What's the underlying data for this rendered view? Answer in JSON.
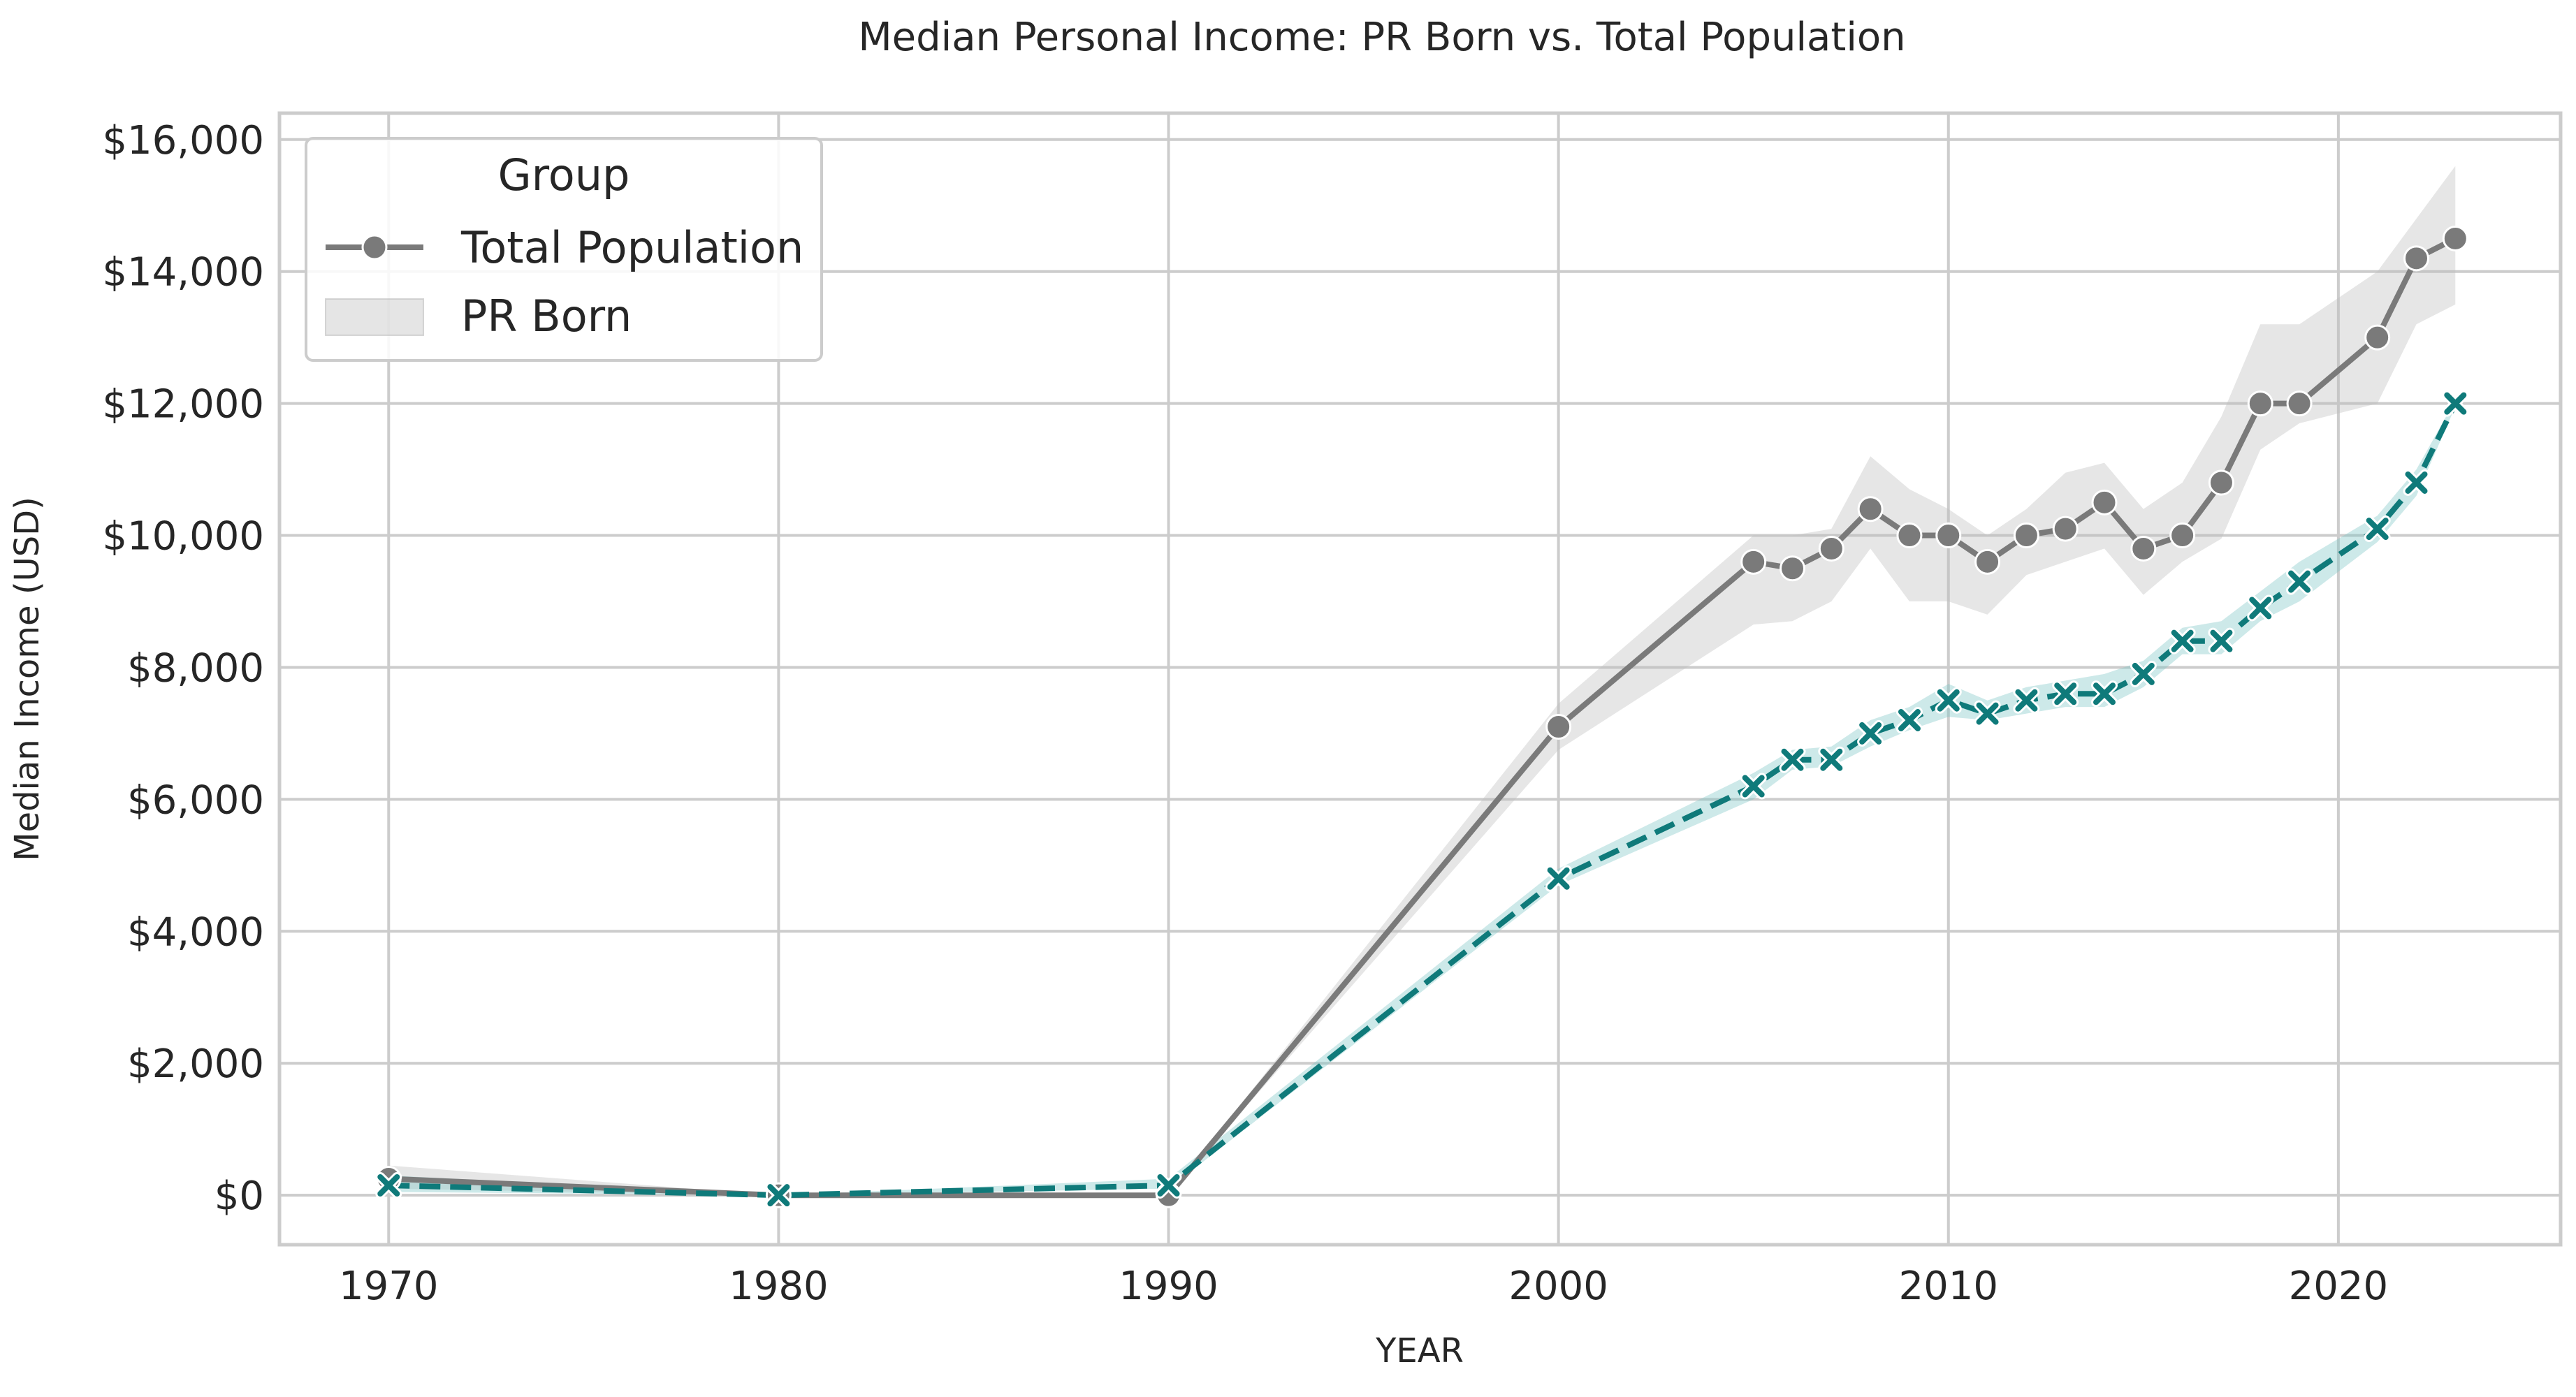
{
  "chart_data": {
    "type": "line",
    "title": "Median Personal Income: PR Born vs. Total Population",
    "xlabel": "YEAR",
    "ylabel": "Median Income (USD)",
    "xlim": [
      1967.2,
      2025.7
    ],
    "ylim": [
      -750,
      16400
    ],
    "x_ticks": [
      1970,
      1980,
      1990,
      2000,
      2010,
      2020
    ],
    "x_tick_labels": [
      "1970",
      "1980",
      "1990",
      "2000",
      "2010",
      "2020"
    ],
    "y_ticks": [
      0,
      2000,
      4000,
      6000,
      8000,
      10000,
      12000,
      14000,
      16000
    ],
    "y_tick_labels": [
      "$0",
      "$2,000",
      "$4,000",
      "$6,000",
      "$8,000",
      "$10,000",
      "$12,000",
      "$14,000",
      "$16,000"
    ],
    "grid": true,
    "legend": {
      "title": "Group",
      "position": "top-left",
      "entries": [
        "Total Population",
        "PR Born"
      ]
    },
    "series": [
      {
        "name": "Total Population",
        "color": "#7a7a7a",
        "band_color": "#bdbdbd",
        "line_style": "solid",
        "marker": "circle",
        "x": [
          1970,
          1980,
          1990,
          2000,
          2005,
          2006,
          2007,
          2008,
          2009,
          2010,
          2011,
          2012,
          2013,
          2014,
          2015,
          2016,
          2017,
          2018,
          2019,
          2021,
          2022,
          2023
        ],
        "values": [
          250,
          0,
          0,
          7100,
          9600,
          9500,
          9800,
          10400,
          10000,
          10000,
          9600,
          10000,
          10100,
          10500,
          9800,
          10000,
          10800,
          12000,
          12000,
          13000,
          14200,
          14500
        ],
        "lower": [
          100,
          0,
          0,
          6750,
          8650,
          8700,
          9000,
          9800,
          9000,
          9000,
          8800,
          9400,
          9600,
          9800,
          9100,
          9600,
          9950,
          11300,
          11700,
          12000,
          13200,
          13500
        ],
        "upper": [
          450,
          0,
          0,
          7450,
          10000,
          10000,
          10100,
          11200,
          10700,
          10400,
          10000,
          10400,
          10950,
          11100,
          10400,
          10800,
          11800,
          13200,
          13200,
          14000,
          14800,
          15600
        ]
      },
      {
        "name": "PR Born",
        "color": "#0f7a7a",
        "band_color": "#7cc6c6",
        "line_style": "dashed",
        "marker": "x",
        "x": [
          1970,
          1980,
          1990,
          2000,
          2005,
          2006,
          2007,
          2008,
          2009,
          2010,
          2011,
          2012,
          2013,
          2014,
          2015,
          2016,
          2017,
          2018,
          2019,
          2021,
          2022,
          2023
        ],
        "values": [
          150,
          0,
          150,
          4800,
          6200,
          6600,
          6600,
          7000,
          7200,
          7500,
          7300,
          7500,
          7600,
          7600,
          7900,
          8400,
          8400,
          8900,
          9300,
          10100,
          10800,
          12000
        ],
        "lower": [
          50,
          0,
          100,
          4700,
          6000,
          6450,
          6500,
          6800,
          7050,
          7250,
          7200,
          7300,
          7400,
          7400,
          7700,
          8200,
          8200,
          8700,
          9000,
          9900,
          10600,
          11950
        ],
        "upper": [
          300,
          0,
          250,
          4950,
          6400,
          6750,
          6800,
          7200,
          7400,
          7750,
          7500,
          7700,
          7800,
          7900,
          8100,
          8600,
          8700,
          9150,
          9600,
          10300,
          11000,
          12050
        ]
      }
    ]
  }
}
